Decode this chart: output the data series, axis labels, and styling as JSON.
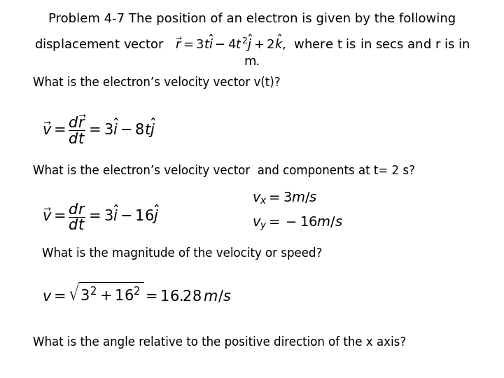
{
  "bg_color": "#ffffff",
  "title_line1": "Problem 4-7 The position of an electron is given by the following",
  "title_line2_pre": "displacement vector  ",
  "title_line2_formula": "$\\vec{r} = 3t\\hat{i} - 4t^2\\hat{j} + 2\\hat{k}$,",
  "title_line2_post": " where t is in secs and r is in",
  "title_line3": "m.",
  "q1": "What is the electron’s velocity vector v(t)?",
  "v_formula1": "$\\vec{v} = \\dfrac{d\\vec{r}}{dt} = 3\\hat{i} - 8t\\hat{j}$",
  "q2": "What is the electron’s velocity vector  and components at t= 2 s?",
  "v_formula2_left": "$\\vec{v} = \\dfrac{dr}{dt} = 3\\hat{i} - 16\\hat{j}$",
  "v_formula2_right1": "$v_x = 3m/s$",
  "v_formula2_right2": "$v_y = -16m/s$",
  "q3": "What is the magnitude of the velocity or speed?",
  "v_formula3": "$v = \\sqrt{3^2 + 16^2} = 16.28\\, m/s$",
  "q4": "What is the angle relative to the positive direction of the x axis?",
  "font_size_title": 13,
  "font_size_q": 12,
  "font_size_formula": 14
}
